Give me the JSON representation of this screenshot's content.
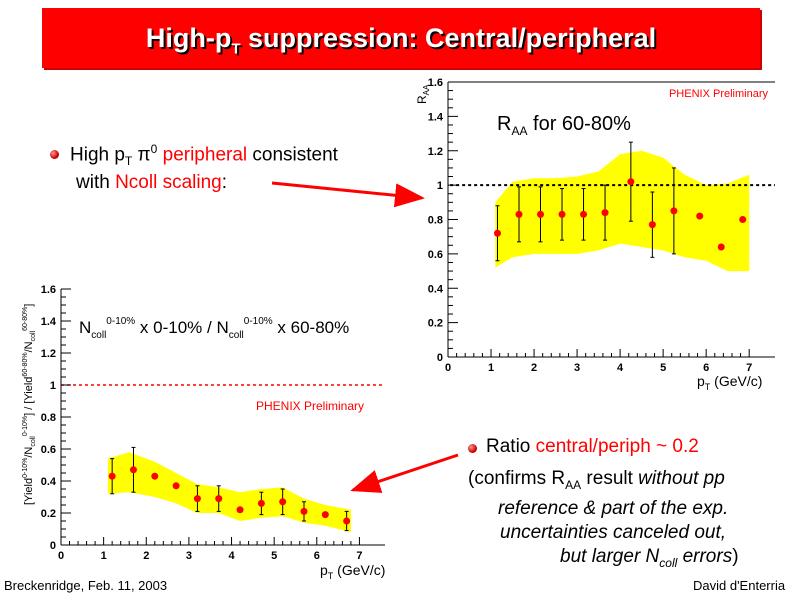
{
  "slide": {
    "title_main": "High-p",
    "title_sub": "T",
    "title_rest": " suppression: Central/peripheral",
    "footer_left": "Breckenridge, Feb. 11, 2003",
    "footer_right": "David d'Enterria"
  },
  "bullets": {
    "b1_l1_a": "High p",
    "b1_l1_sub": "T",
    "b1_l1_pi": " π",
    "b1_l1_sup": "0",
    "b1_l1_red": " peripheral",
    "b1_l1_b": " consistent",
    "b1_l2_a": "with ",
    "b1_l2_red": "Ncoll scaling",
    "b1_l2_b": ":",
    "b2_l1_a": "Ratio ",
    "b2_l1_red": "central/periph ~ 0.2",
    "b2_l2_a": "(confirms R",
    "b2_l2_sub": "AA",
    "b2_l2_b": " result ",
    "b2_l2_i": "without pp",
    "b2_l3": "reference & part of the exp.",
    "b2_l4": "uncertainties canceled out,",
    "b2_l5_a": "but larger N",
    "b2_l5_sub": "coll",
    "b2_l5_b": " errors",
    "b2_l5_c": ")"
  },
  "chart_data": [
    {
      "type": "scatter",
      "annotation_a": "R",
      "annotation_sub": "AA",
      "annotation_b": " for 60-80%",
      "watermark": "PHENIX Preliminary",
      "ylabel": "R",
      "ylabel_sub": "AA",
      "xlabel": "p",
      "xlabel_sub": "T",
      "xlabel_unit": " (GeV/c)",
      "xlim": [
        0,
        7.6
      ],
      "ylim": [
        0,
        1.6
      ],
      "x_ticks": [
        0,
        1,
        2,
        3,
        4,
        5,
        6,
        7
      ],
      "x_tick_labels": [
        "0",
        "1",
        "2",
        "3",
        "4",
        "5",
        "6",
        "7"
      ],
      "y_ticks": [
        0.2,
        0.4,
        0.6,
        0.8,
        1.0,
        1.2,
        1.4,
        1.6
      ],
      "y_tick_labels": [
        "0.2",
        "0.4",
        "0.6",
        "0.8",
        "1",
        "1.2",
        "1.4",
        "1.6"
      ],
      "reference_line": 1.0,
      "color_marker": "#ff0000",
      "color_band": "#ffff00",
      "points": [
        {
          "x": 1.15,
          "y": 0.72,
          "err": 0.16
        },
        {
          "x": 1.65,
          "y": 0.83,
          "err": 0.16
        },
        {
          "x": 2.15,
          "y": 0.83,
          "err": 0.16
        },
        {
          "x": 2.65,
          "y": 0.83,
          "err": 0.15
        },
        {
          "x": 3.15,
          "y": 0.83,
          "err": 0.15
        },
        {
          "x": 3.65,
          "y": 0.84,
          "err": 0.16
        },
        {
          "x": 4.25,
          "y": 1.02,
          "err": 0.23
        },
        {
          "x": 4.75,
          "y": 0.77,
          "err": 0.19
        },
        {
          "x": 5.25,
          "y": 0.85,
          "err": 0.25
        },
        {
          "x": 5.85,
          "y": 0.82,
          "err": 0.0
        },
        {
          "x": 6.35,
          "y": 0.64,
          "err": 0.0
        },
        {
          "x": 6.85,
          "y": 0.8,
          "err": 0.0
        }
      ],
      "band_x": [
        1.1,
        1.5,
        2.0,
        2.5,
        3.0,
        3.5,
        4.0,
        4.5,
        5.0,
        5.5,
        6.0,
        6.5,
        7.0
      ],
      "band_upper": [
        0.9,
        1.02,
        1.04,
        1.04,
        1.05,
        1.08,
        1.18,
        1.2,
        1.16,
        1.06,
        1.0,
        1.01,
        1.06
      ],
      "band_lower": [
        0.52,
        0.58,
        0.6,
        0.6,
        0.6,
        0.62,
        0.66,
        0.64,
        0.62,
        0.58,
        0.56,
        0.5,
        0.5
      ]
    },
    {
      "type": "scatter",
      "annotation_a": "N",
      "annotation_sub1": "coll",
      "annotation_sup1": "0-10%",
      "annotation_b": " x 0-10% / N",
      "annotation_sub2": "coll",
      "annotation_sup2": "0-10%",
      "annotation_c": " x 60-80%",
      "watermark": "PHENIX Preliminary",
      "ylabel": "[Yield",
      "ylabel_sup1": "0-10%",
      "ylabel_b": "/N",
      "ylabel_sub1": "coll",
      "ylabel_sup2": "0-10%",
      "ylabel_c": "] / [Yield",
      "ylabel_sup3": "60-80%",
      "ylabel_d": "/N",
      "ylabel_sub2": "coll",
      "ylabel_sup4": "60-80%",
      "ylabel_e": "]",
      "xlabel": "p",
      "xlabel_sub": "T",
      "xlabel_unit": " (GeV/c)",
      "xlim": [
        0,
        7.6
      ],
      "ylim": [
        0,
        1.6
      ],
      "x_ticks": [
        0,
        1,
        2,
        3,
        4,
        5,
        6,
        7
      ],
      "x_tick_labels": [
        "0",
        "1",
        "2",
        "3",
        "4",
        "5",
        "6",
        "7"
      ],
      "y_ticks": [
        0.2,
        0.4,
        0.6,
        0.8,
        1.0,
        1.2,
        1.4,
        1.6
      ],
      "y_tick_labels": [
        "0.2",
        "0.4",
        "0.6",
        "0.8",
        "1",
        "1.2",
        "1.4",
        "1.6"
      ],
      "reference_line": 1.0,
      "color_marker": "#ff0000",
      "color_band": "#ffff00",
      "points": [
        {
          "x": 1.2,
          "y": 0.43,
          "err": 0.11
        },
        {
          "x": 1.7,
          "y": 0.47,
          "err": 0.14
        },
        {
          "x": 2.2,
          "y": 0.43,
          "err": 0.0
        },
        {
          "x": 2.7,
          "y": 0.37,
          "err": 0.0
        },
        {
          "x": 3.2,
          "y": 0.29,
          "err": 0.08
        },
        {
          "x": 3.7,
          "y": 0.29,
          "err": 0.08
        },
        {
          "x": 4.2,
          "y": 0.22,
          "err": 0.0
        },
        {
          "x": 4.7,
          "y": 0.26,
          "err": 0.07
        },
        {
          "x": 5.2,
          "y": 0.27,
          "err": 0.08
        },
        {
          "x": 5.7,
          "y": 0.21,
          "err": 0.06
        },
        {
          "x": 6.2,
          "y": 0.19,
          "err": 0.0
        },
        {
          "x": 6.7,
          "y": 0.15,
          "err": 0.06
        }
      ],
      "band_x": [
        1.1,
        1.6,
        2.2,
        2.7,
        3.2,
        3.7,
        4.2,
        4.7,
        5.2,
        5.7,
        6.2,
        6.8
      ],
      "band_upper": [
        0.54,
        0.58,
        0.52,
        0.45,
        0.38,
        0.36,
        0.33,
        0.35,
        0.36,
        0.29,
        0.25,
        0.22
      ],
      "band_lower": [
        0.32,
        0.33,
        0.3,
        0.26,
        0.2,
        0.2,
        0.15,
        0.17,
        0.18,
        0.14,
        0.12,
        0.08
      ]
    }
  ]
}
